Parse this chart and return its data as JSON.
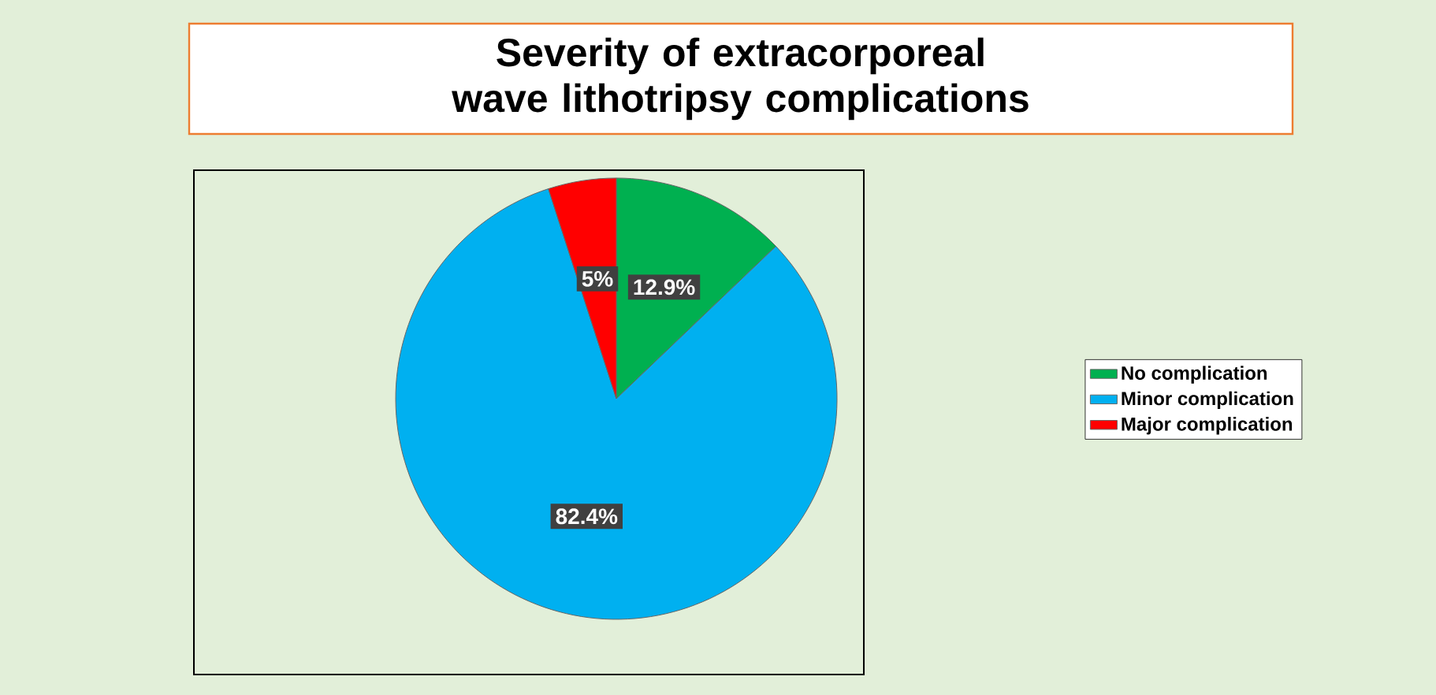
{
  "chart_data": {
    "type": "pie",
    "title": "Severity of extracorporeal wave lithotripsy complications",
    "categories": [
      "No complication",
      "Minor complication",
      "Major complication"
    ],
    "values": [
      12.9,
      82.4,
      5
    ],
    "value_labels": [
      "12.9%",
      "82.4%",
      "5%"
    ],
    "colors": [
      "#00b050",
      "#00b0f0",
      "#ff0000"
    ],
    "legend": "right"
  }
}
